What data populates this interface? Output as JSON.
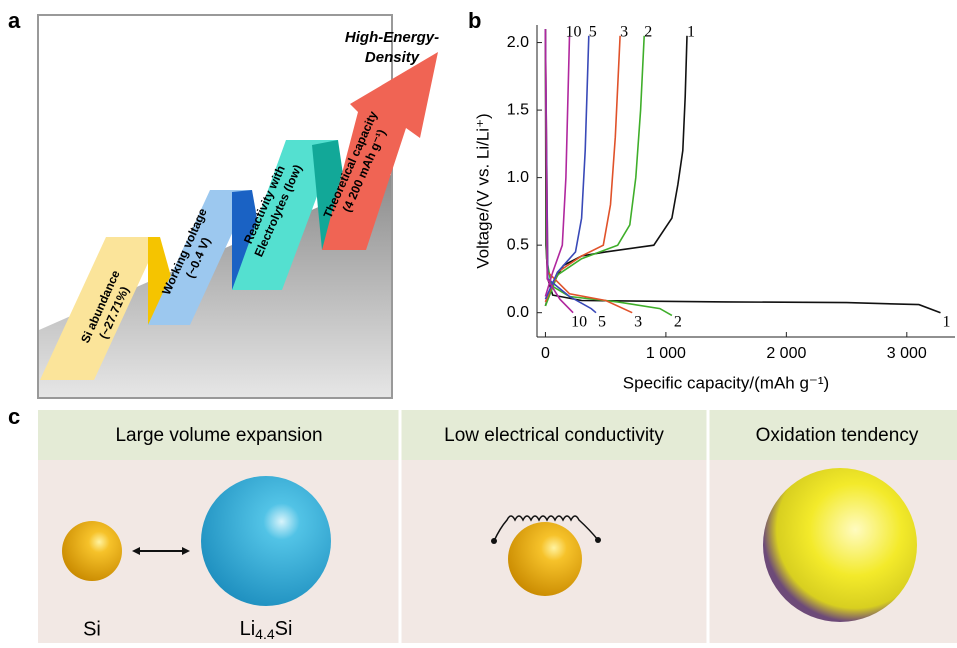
{
  "panel_labels": [
    "a",
    "b",
    "c"
  ],
  "panel_a": {
    "goal": [
      "High-Energy-",
      "Density"
    ],
    "steps": [
      [
        "Si abundance",
        "(~27.71%)"
      ],
      [
        "Working voltage",
        "(~0.4 V)"
      ],
      [
        "Reactivity with",
        "Electrolytes (low)"
      ],
      [
        "Theoretical capacity",
        "(4 200 mAh g⁻¹)"
      ]
    ]
  },
  "chart_data": {
    "type": "line",
    "x_label": "Specific capacity/(mAh g⁻¹)",
    "y_label": "Voltage/(V vs. Li/Li⁺)",
    "xlim": [
      -70,
      3400
    ],
    "ylim": [
      -0.18,
      2.13
    ],
    "xticks": [
      0,
      {
        "value": 1000,
        "label": "1 000"
      },
      {
        "value": 2000,
        "label": "2 000"
      },
      {
        "value": 3000,
        "label": "3 000"
      }
    ],
    "yticks": [
      {
        "value": 0,
        "label": "0.0"
      },
      0.5,
      {
        "value": 1,
        "label": "1.0"
      },
      1.5,
      {
        "value": 2,
        "label": "2.0"
      }
    ],
    "series": [
      {
        "name": "1",
        "color": "#111111",
        "x": [
          0,
          5,
          20,
          60,
          300,
          1500,
          2500,
          3100,
          3280,
          null,
          0,
          50,
          150,
          300,
          500,
          900,
          1050,
          1100,
          1140,
          1160,
          1175
        ],
        "values": [
          2.1,
          0.5,
          0.25,
          0.13,
          0.09,
          0.08,
          0.075,
          0.06,
          0,
          null,
          0.05,
          0.2,
          0.35,
          0.42,
          0.45,
          0.5,
          0.7,
          0.95,
          1.2,
          1.6,
          2.05
        ]
      },
      {
        "name": "2",
        "color": "#3fae2a",
        "x": [
          0,
          10,
          50,
          200,
          600,
          950,
          1050,
          null,
          0,
          100,
          300,
          600,
          700,
          750,
          790,
          820
        ],
        "values": [
          2.1,
          0.4,
          0.2,
          0.12,
          0.08,
          0.03,
          -0.02,
          null,
          0.05,
          0.28,
          0.4,
          0.5,
          0.65,
          1,
          1.5,
          2.05
        ]
      },
      {
        "name": "3",
        "color": "#e0522a",
        "x": [
          0,
          20,
          200,
          500,
          720,
          null,
          0,
          100,
          300,
          480,
          540,
          580,
          620
        ],
        "values": [
          2.1,
          0.3,
          0.14,
          0.09,
          0,
          null,
          0.08,
          0.3,
          0.42,
          0.5,
          0.8,
          1.3,
          2.05
        ]
      },
      {
        "name": "5",
        "color": "#3949b8",
        "x": [
          0,
          20,
          200,
          380,
          420,
          null,
          0,
          100,
          250,
          300,
          330,
          360
        ],
        "values": [
          2.1,
          0.25,
          0.12,
          0.03,
          0,
          null,
          0.1,
          0.3,
          0.45,
          0.7,
          1.2,
          2.05
        ]
      },
      {
        "name": "10",
        "color": "#b0279e",
        "x": [
          0,
          15,
          120,
          230,
          null,
          0,
          60,
          140,
          170,
          200
        ],
        "values": [
          2.1,
          0.25,
          0.1,
          0,
          null,
          0.12,
          0.3,
          0.5,
          1,
          2.05
        ]
      }
    ]
  },
  "panel_c": {
    "headers": [
      "Large volume expansion",
      "Low electrical conductivity",
      "Oxidation tendency"
    ],
    "si": "Si",
    "lithiated": [
      "Li",
      "4.4",
      "Si"
    ]
  }
}
